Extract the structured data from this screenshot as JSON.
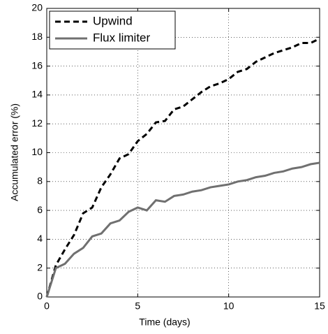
{
  "chart_data": {
    "type": "line",
    "xlabel": "Time (days)",
    "ylabel": "Accumulated error (%)",
    "x": [
      0,
      0.5,
      1,
      1.5,
      2,
      2.5,
      3,
      3.5,
      4,
      4.5,
      5,
      5.5,
      6,
      6.5,
      7,
      7.5,
      8,
      8.5,
      9,
      9.5,
      10,
      10.5,
      11,
      11.5,
      12,
      12.5,
      13,
      13.5,
      14,
      14.5,
      15
    ],
    "series": [
      {
        "name": "Upwind",
        "color": "#000000",
        "linestyle": "dashed",
        "values": [
          0,
          2.2,
          3.3,
          4.3,
          5.8,
          6.2,
          7.6,
          8.5,
          9.6,
          9.9,
          10.8,
          11.3,
          12.1,
          12.2,
          13.0,
          13.2,
          13.7,
          14.2,
          14.6,
          14.8,
          15.1,
          15.6,
          15.8,
          16.3,
          16.6,
          16.9,
          17.1,
          17.3,
          17.6,
          17.6,
          17.9
        ]
      },
      {
        "name": "Flux limiter",
        "color": "#707070",
        "linestyle": "solid",
        "values": [
          0,
          2.0,
          2.3,
          3.0,
          3.4,
          4.2,
          4.4,
          5.1,
          5.3,
          5.9,
          6.2,
          6.0,
          6.7,
          6.6,
          7.0,
          7.1,
          7.3,
          7.4,
          7.6,
          7.7,
          7.8,
          8.0,
          8.1,
          8.3,
          8.4,
          8.6,
          8.7,
          8.9,
          9.0,
          9.2,
          9.3
        ]
      }
    ],
    "xlim": [
      0,
      15
    ],
    "xticks": [
      0,
      5,
      10,
      15
    ],
    "ylim": [
      0,
      20
    ],
    "yticks": [
      0,
      2,
      4,
      6,
      8,
      10,
      12,
      14,
      16,
      18,
      20
    ],
    "grid": true,
    "legend": "upper-left"
  }
}
